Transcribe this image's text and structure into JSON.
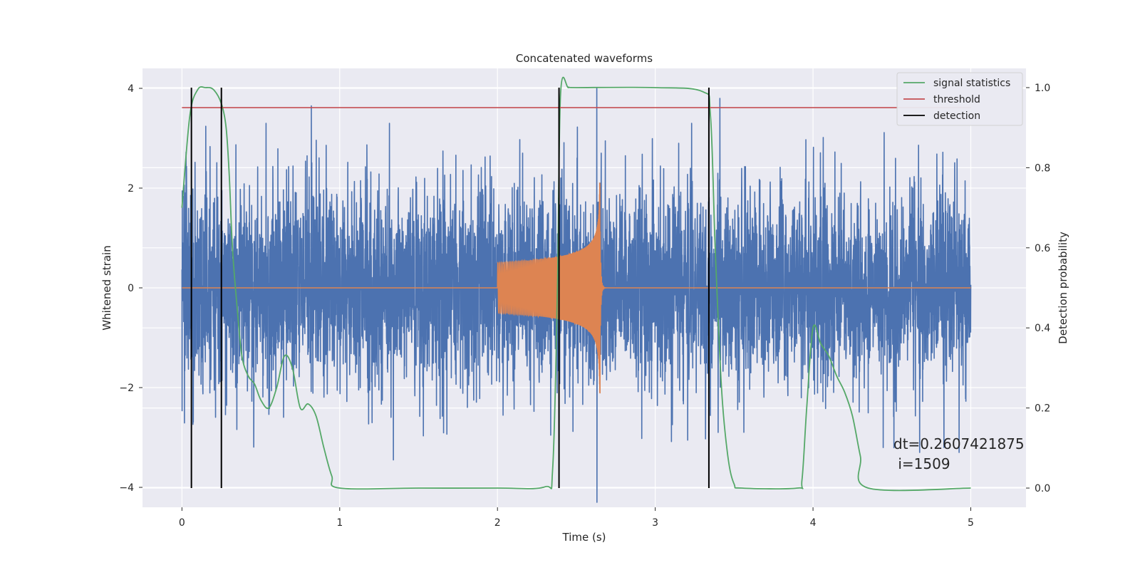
{
  "chart_data": {
    "type": "line",
    "title": "Concatenated waveforms",
    "xlabel": "Time (s)",
    "ylabel": "Whitened strain",
    "y2label": "Detection probability",
    "xlim": [
      -0.25,
      5.35
    ],
    "ylim": [
      -4.4,
      4.4
    ],
    "y2lim": [
      -0.048,
      1.048
    ],
    "x_ticks": [
      "0",
      "1",
      "2",
      "3",
      "4",
      "5"
    ],
    "x_tick_values": [
      0,
      1,
      2,
      3,
      4,
      5
    ],
    "y_ticks": [
      "4",
      "2",
      "0",
      "−2",
      "−4"
    ],
    "y_tick_values": [
      4,
      2,
      0,
      -2,
      -4
    ],
    "y2_ticks": [
      "1.0",
      "0.8",
      "0.6",
      "0.4",
      "0.2",
      "0.0"
    ],
    "y2_tick_values": [
      1.0,
      0.8,
      0.6,
      0.4,
      0.2,
      0.0
    ],
    "grid": true,
    "legend_position": "top-right",
    "legend": [
      {
        "label": "signal statistics",
        "color": "#55a868"
      },
      {
        "label": "threshold",
        "color": "#c44e52"
      },
      {
        "label": "detection",
        "color": "#000000"
      }
    ],
    "colors": {
      "background": "#eaeaf2",
      "grid": "#ffffff",
      "noise": "#4c72b0",
      "waveform": "#dd8452",
      "signal_statistics": "#55a868",
      "threshold": "#c44e52",
      "detection": "#000000"
    },
    "series": [
      {
        "role": "noise",
        "x_range": [
          0,
          5
        ],
        "typical_amplitude": 1.0,
        "peak_values": [
          {
            "x": 0.82,
            "y": 3.65
          },
          {
            "x": 2.63,
            "y": 4.0
          },
          {
            "x": 3.41,
            "y": 3.8
          },
          {
            "x": 2.63,
            "y": -4.3
          },
          {
            "x": 1.34,
            "y": -3.45
          },
          {
            "x": 4.83,
            "y": -3.2
          }
        ]
      },
      {
        "role": "waveform",
        "x_range": [
          2.0,
          2.66
        ],
        "start_amplitude": 0.5,
        "peak_amplitude": 2.3,
        "merger_time": 2.65
      },
      {
        "name": "signal statistics",
        "x": [
          0.0,
          0.05,
          0.1,
          0.15,
          0.2,
          0.25,
          0.28,
          0.3,
          0.32,
          0.35,
          0.38,
          0.42,
          0.46,
          0.5,
          0.55,
          0.6,
          0.65,
          0.7,
          0.75,
          0.8,
          0.85,
          0.9,
          0.95,
          1.0,
          1.5,
          2.0,
          2.3,
          2.35,
          2.38,
          2.4,
          2.45,
          2.5,
          3.0,
          3.3,
          3.35,
          3.38,
          3.42,
          3.46,
          3.5,
          3.55,
          3.9,
          3.93,
          3.96,
          4.0,
          4.05,
          4.1,
          4.15,
          4.2,
          4.25,
          4.3,
          4.35,
          5.0
        ],
        "y": [
          0.7,
          0.93,
          0.995,
          1.0,
          0.995,
          0.96,
          0.9,
          0.78,
          0.6,
          0.45,
          0.33,
          0.28,
          0.26,
          0.22,
          0.2,
          0.25,
          0.33,
          0.3,
          0.2,
          0.21,
          0.18,
          0.1,
          0.03,
          0.0,
          0.0,
          0.0,
          0.003,
          0.05,
          0.5,
          0.985,
          1.0,
          1.0,
          1.0,
          0.99,
          0.93,
          0.6,
          0.25,
          0.08,
          0.01,
          0.0,
          0.0,
          0.02,
          0.2,
          0.4,
          0.36,
          0.33,
          0.28,
          0.24,
          0.18,
          0.08,
          0.0,
          0.0
        ]
      },
      {
        "name": "threshold",
        "x": [
          0,
          5
        ],
        "y": [
          0.95,
          0.95
        ]
      },
      {
        "name": "detection",
        "x_values": [
          0.06,
          0.25,
          2.39,
          3.34
        ],
        "y_range": [
          0.0,
          1.0
        ]
      }
    ],
    "annotations": [
      "dt=0.2607421875",
      " i=1509"
    ]
  }
}
